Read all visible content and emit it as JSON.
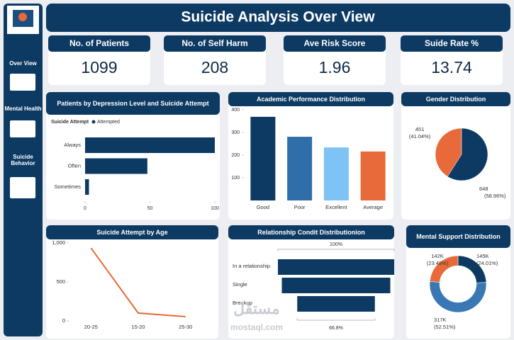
{
  "header": {
    "title": "Suicide Analysis Over View"
  },
  "sidebar": {
    "items": [
      "Over View",
      "Mental Health",
      "Suicide Behavior"
    ]
  },
  "kpis": [
    {
      "label": "No. of Patients",
      "value": 1099
    },
    {
      "label": "No. of Self Harm",
      "value": 208
    },
    {
      "label": "Ave Risk Score",
      "value": 1.96
    },
    {
      "label": "Suide Rate %",
      "value": 13.74
    }
  ],
  "chart_data": [
    {
      "type": "hbar",
      "title": "Patients by Depression Level and Suicide Attempt",
      "legend_title": "Suicide Attempt",
      "series_name": "Attempted",
      "categories": [
        "Always",
        "Often",
        "Sometimes"
      ],
      "values": [
        100,
        48,
        3
      ],
      "color": "#0d3a63",
      "xlim": [
        0,
        100
      ],
      "xticks": [
        0,
        50,
        100
      ]
    },
    {
      "type": "bar",
      "title": "Academic Performance Distribution",
      "categories": [
        "Good",
        "Poor",
        "Excellent",
        "Average"
      ],
      "values": [
        369,
        281,
        234,
        216
      ],
      "colors": [
        "#0d3a63",
        "#2f6ea8",
        "#7ec3f5",
        "#e8693a"
      ],
      "ylim": [
        0,
        400
      ],
      "yticks": [
        100,
        200,
        300,
        400
      ]
    },
    {
      "type": "pie",
      "title": "Gender Distribution",
      "values": [
        451,
        648
      ],
      "percent_labels": [
        "(41.04%)",
        "(58.96%)"
      ],
      "colors": [
        "#e8693a",
        "#0d3a63"
      ]
    },
    {
      "type": "line",
      "title": "Suicide Attempt by Age",
      "categories": [
        "20-25",
        "15-20",
        "25-30"
      ],
      "values": [
        935,
        100,
        55
      ],
      "color": "#e8693a",
      "ylim": [
        0,
        1000
      ],
      "yticks": [
        0,
        500,
        {
          "value": 1000,
          "label": "1,000"
        }
      ]
    },
    {
      "type": "funnel",
      "title": "Relationship Condit Distributionion",
      "categories": [
        "In a relationship",
        "Single",
        "Breakup"
      ],
      "values": [
        100,
        93.3,
        66.8
      ],
      "value_labels": [
        "100%",
        null,
        "66.8%"
      ],
      "color": "#0d3a63"
    },
    {
      "type": "donut",
      "title": "Mental Support Distribution",
      "values": [
        145000,
        317000,
        142000
      ],
      "value_labels": [
        "145K",
        "317K",
        "142K"
      ],
      "percent_labels": [
        "(24.01%)",
        "(52.51%)",
        "(23.48%)"
      ],
      "colors": [
        "#0d3a63",
        "#3a78b5",
        "#e8693a"
      ]
    }
  ],
  "watermark": {
    "arabic": "مستقل",
    "latin": "mostaql.com"
  }
}
